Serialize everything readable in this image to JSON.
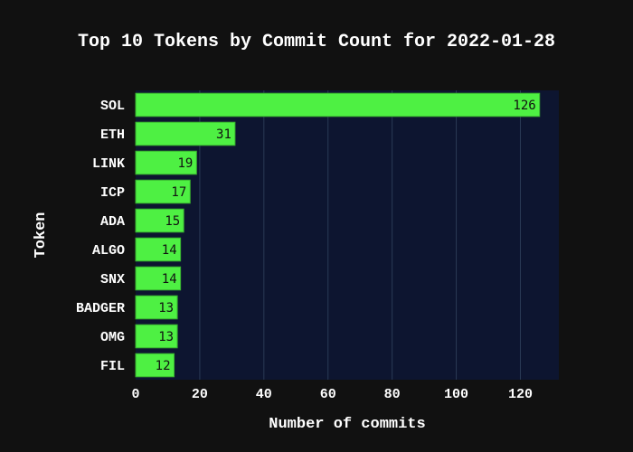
{
  "chart_data": {
    "type": "bar",
    "orientation": "horizontal",
    "title": "Top 10 Tokens by Commit Count for 2022-01-28",
    "xlabel": "Number of commits",
    "ylabel": "Token",
    "categories": [
      "SOL",
      "ETH",
      "LINK",
      "ICP",
      "ADA",
      "ALGO",
      "SNX",
      "BADGER",
      "OMG",
      "FIL"
    ],
    "values": [
      126,
      31,
      19,
      17,
      15,
      14,
      14,
      13,
      13,
      12
    ],
    "xlim": [
      0,
      132
    ],
    "xticks": [
      0,
      20,
      40,
      60,
      80,
      100,
      120
    ],
    "grid": true,
    "legend": "none",
    "colors": {
      "bar": "#4ef043",
      "bar_outline": "#38b02f",
      "plot_background": "#0d1530",
      "page_background": "#111111",
      "grid": "#2a3a55",
      "text": "#ffffff"
    }
  }
}
